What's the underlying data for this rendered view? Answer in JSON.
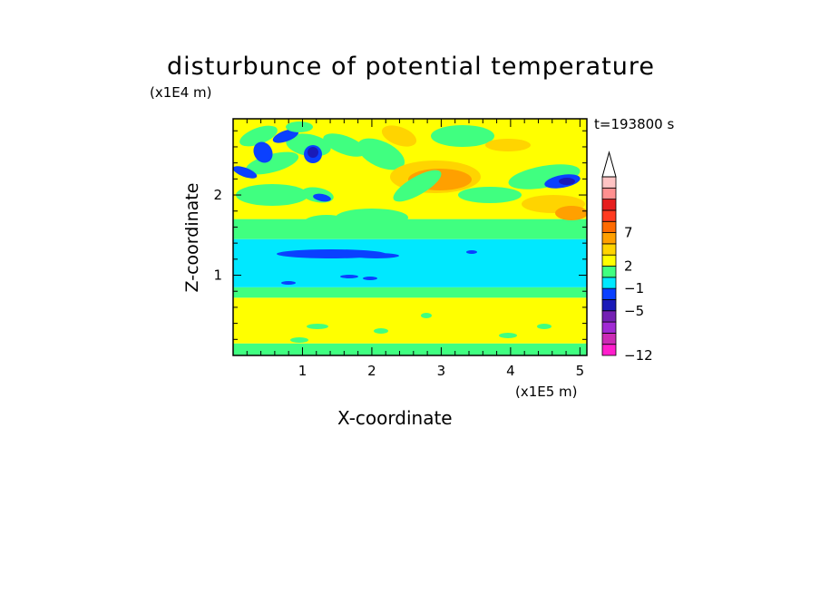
{
  "title": "disturbunce of potential temperature",
  "time_label": "t=193800 s",
  "chart_data": {
    "type": "heatmap",
    "title": "disturbunce of potential temperature",
    "xlabel": "X-coordinate",
    "ylabel": "Z-coordinate",
    "x_scale_label": "(x1E5 m)",
    "y_scale_label": "(x1E4 m)",
    "x_ticks": [
      "1",
      "2",
      "3",
      "4",
      "5"
    ],
    "y_ticks": [
      "1",
      "2"
    ],
    "xlim": [
      0,
      5.1
    ],
    "ylim": [
      0,
      2.95
    ],
    "colorbar": {
      "colors": [
        "#ff1ecc",
        "#cc2bb5",
        "#a12ad4",
        "#7420b4",
        "#1a1ab8",
        "#0a40ff",
        "#00e8ff",
        "#40ff80",
        "#ffff00",
        "#ffd400",
        "#ffa000",
        "#ff6a00",
        "#ff3a20",
        "#e61e1e",
        "#ff9090",
        "#ffc4c4"
      ],
      "tick_labels": [
        "-12",
        "-5",
        "-1",
        "2",
        "7"
      ],
      "tick_after_band": [
        0,
        4,
        6,
        8,
        11
      ],
      "extend": "max"
    },
    "layers": [
      {
        "z_range": [
          0,
          0.15
        ],
        "dominant_value": "0 to 1",
        "color": "#40ff80"
      },
      {
        "z_range": [
          0.15,
          0.72
        ],
        "dominant_value": "1 to 2",
        "color": "#ffff00"
      },
      {
        "z_range": [
          0.72,
          0.85
        ],
        "dominant_value": "0 to 1",
        "color": "#40ff80"
      },
      {
        "z_range": [
          0.85,
          1.45
        ],
        "dominant_value": "-1 to 0",
        "color": "#00e8ff"
      },
      {
        "z_range": [
          1.45,
          1.7
        ],
        "dominant_value": "0 to 1",
        "color": "#40ff80"
      },
      {
        "z_range": [
          1.7,
          2.95
        ],
        "dominant_value": "mixed wave pattern -5 to 4",
        "color": "#ffff00"
      }
    ],
    "features": [
      {
        "x": 3.3,
        "z": 2.2,
        "value": "3 to 4",
        "color": "#ffa000"
      },
      {
        "x": 1.15,
        "z": 2.55,
        "value": "-5 to -3",
        "color": "#1a1ab8"
      },
      {
        "x": 1.6,
        "z": 1.3,
        "value": "-3 to -1",
        "color": "#0a40ff"
      },
      {
        "x": 4.7,
        "z": 2.15,
        "value": "-5 to -3",
        "color": "#1a1ab8"
      }
    ]
  }
}
